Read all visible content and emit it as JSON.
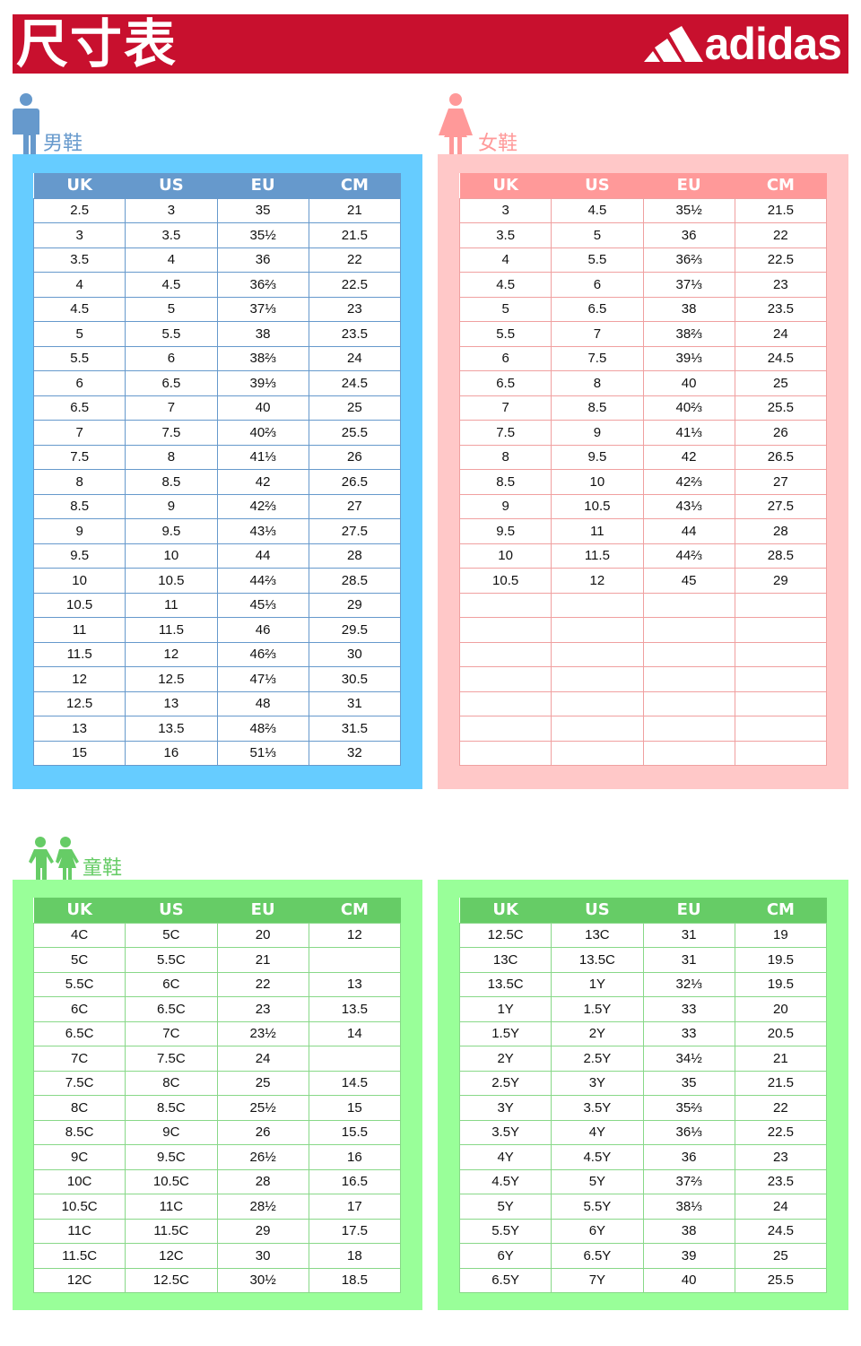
{
  "banner": {
    "title": "尺寸表",
    "brand": "adidas"
  },
  "colors": {
    "banner": "#c8102e",
    "men_panel": "#66ccff",
    "men_header": "#6699cc",
    "women_panel": "#ffc8c8",
    "women_header": "#ff9999",
    "kids_panel": "#99ff99",
    "kids_header": "#66cc66"
  },
  "men": {
    "label": "男鞋",
    "icon": "man-icon",
    "headers": [
      "UK",
      "US",
      "EU",
      "CM"
    ],
    "rows": [
      [
        "2.5",
        "3",
        "35",
        "21"
      ],
      [
        "3",
        "3.5",
        "35½",
        "21.5"
      ],
      [
        "3.5",
        "4",
        "36",
        "22"
      ],
      [
        "4",
        "4.5",
        "36⅔",
        "22.5"
      ],
      [
        "4.5",
        "5",
        "37⅓",
        "23"
      ],
      [
        "5",
        "5.5",
        "38",
        "23.5"
      ],
      [
        "5.5",
        "6",
        "38⅔",
        "24"
      ],
      [
        "6",
        "6.5",
        "39⅓",
        "24.5"
      ],
      [
        "6.5",
        "7",
        "40",
        "25"
      ],
      [
        "7",
        "7.5",
        "40⅔",
        "25.5"
      ],
      [
        "7.5",
        "8",
        "41⅓",
        "26"
      ],
      [
        "8",
        "8.5",
        "42",
        "26.5"
      ],
      [
        "8.5",
        "9",
        "42⅔",
        "27"
      ],
      [
        "9",
        "9.5",
        "43⅓",
        "27.5"
      ],
      [
        "9.5",
        "10",
        "44",
        "28"
      ],
      [
        "10",
        "10.5",
        "44⅔",
        "28.5"
      ],
      [
        "10.5",
        "11",
        "45⅓",
        "29"
      ],
      [
        "11",
        "11.5",
        "46",
        "29.5"
      ],
      [
        "11.5",
        "12",
        "46⅔",
        "30"
      ],
      [
        "12",
        "12.5",
        "47⅓",
        "30.5"
      ],
      [
        "12.5",
        "13",
        "48",
        "31"
      ],
      [
        "13",
        "13.5",
        "48⅔",
        "31.5"
      ],
      [
        "15",
        "16",
        "51⅓",
        "32"
      ]
    ]
  },
  "women": {
    "label": "女鞋",
    "icon": "woman-icon",
    "headers": [
      "UK",
      "US",
      "EU",
      "CM"
    ],
    "rows": [
      [
        "3",
        "4.5",
        "35½",
        "21.5"
      ],
      [
        "3.5",
        "5",
        "36",
        "22"
      ],
      [
        "4",
        "5.5",
        "36⅔",
        "22.5"
      ],
      [
        "4.5",
        "6",
        "37⅓",
        "23"
      ],
      [
        "5",
        "6.5",
        "38",
        "23.5"
      ],
      [
        "5.5",
        "7",
        "38⅔",
        "24"
      ],
      [
        "6",
        "7.5",
        "39⅓",
        "24.5"
      ],
      [
        "6.5",
        "8",
        "40",
        "25"
      ],
      [
        "7",
        "8.5",
        "40⅔",
        "25.5"
      ],
      [
        "7.5",
        "9",
        "41⅓",
        "26"
      ],
      [
        "8",
        "9.5",
        "42",
        "26.5"
      ],
      [
        "8.5",
        "10",
        "42⅔",
        "27"
      ],
      [
        "9",
        "10.5",
        "43⅓",
        "27.5"
      ],
      [
        "9.5",
        "11",
        "44",
        "28"
      ],
      [
        "10",
        "11.5",
        "44⅔",
        "28.5"
      ],
      [
        "10.5",
        "12",
        "45",
        "29"
      ],
      [
        "",
        "",
        "",
        ""
      ],
      [
        "",
        "",
        "",
        ""
      ],
      [
        "",
        "",
        "",
        ""
      ],
      [
        "",
        "",
        "",
        ""
      ],
      [
        "",
        "",
        "",
        ""
      ],
      [
        "",
        "",
        "",
        ""
      ],
      [
        "",
        "",
        "",
        ""
      ]
    ]
  },
  "kids": {
    "label": "童鞋",
    "icon": "children-icon",
    "headers": [
      "UK",
      "US",
      "EU",
      "CM"
    ],
    "rows": [
      [
        "4C",
        "5C",
        "20",
        "12"
      ],
      [
        "5C",
        "5.5C",
        "21",
        ""
      ],
      [
        "5.5C",
        "6C",
        "22",
        "13"
      ],
      [
        "6C",
        "6.5C",
        "23",
        "13.5"
      ],
      [
        "6.5C",
        "7C",
        "23½",
        "14"
      ],
      [
        "7C",
        "7.5C",
        "24",
        ""
      ],
      [
        "7.5C",
        "8C",
        "25",
        "14.5"
      ],
      [
        "8C",
        "8.5C",
        "25½",
        "15"
      ],
      [
        "8.5C",
        "9C",
        "26",
        "15.5"
      ],
      [
        "9C",
        "9.5C",
        "26½",
        "16"
      ],
      [
        "10C",
        "10.5C",
        "28",
        "16.5"
      ],
      [
        "10.5C",
        "11C",
        "28½",
        "17"
      ],
      [
        "11C",
        "11.5C",
        "29",
        "17.5"
      ],
      [
        "11.5C",
        "12C",
        "30",
        "18"
      ],
      [
        "12C",
        "12.5C",
        "30½",
        "18.5"
      ]
    ]
  },
  "youth": {
    "headers": [
      "UK",
      "US",
      "EU",
      "CM"
    ],
    "rows": [
      [
        "12.5C",
        "13C",
        "31",
        "19"
      ],
      [
        "13C",
        "13.5C",
        "31",
        "19.5"
      ],
      [
        "13.5C",
        "1Y",
        "32⅓",
        "19.5"
      ],
      [
        "1Y",
        "1.5Y",
        "33",
        "20"
      ],
      [
        "1.5Y",
        "2Y",
        "33",
        "20.5"
      ],
      [
        "2Y",
        "2.5Y",
        "34½",
        "21"
      ],
      [
        "2.5Y",
        "3Y",
        "35",
        "21.5"
      ],
      [
        "3Y",
        "3.5Y",
        "35⅔",
        "22"
      ],
      [
        "3.5Y",
        "4Y",
        "36⅓",
        "22.5"
      ],
      [
        "4Y",
        "4.5Y",
        "36",
        "23"
      ],
      [
        "4.5Y",
        "5Y",
        "37⅔",
        "23.5"
      ],
      [
        "5Y",
        "5.5Y",
        "38⅓",
        "24"
      ],
      [
        "5.5Y",
        "6Y",
        "38",
        "24.5"
      ],
      [
        "6Y",
        "6.5Y",
        "39",
        "25"
      ],
      [
        "6.5Y",
        "7Y",
        "40",
        "25.5"
      ]
    ]
  }
}
